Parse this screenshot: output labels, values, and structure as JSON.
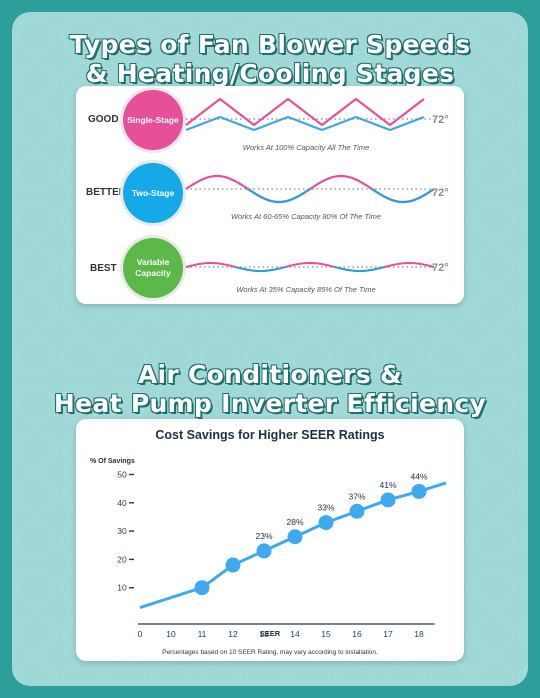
{
  "top_title": {
    "line1": "Types of Fan Blower Speeds",
    "line2": "& Heating/Cooling Stages"
  },
  "stages": [
    {
      "rating": "GOOD",
      "name": "Single-Stage",
      "temp": "72°",
      "caption": "Works At 100% Capacity All The Time",
      "color": "#e64f9a"
    },
    {
      "rating": "BETTER",
      "name": "Two-Stage",
      "temp": "72°",
      "caption": "Works At 60-65% Capacity 80% Of The Time",
      "color": "#16a9e8"
    },
    {
      "rating": "BEST",
      "name": "Variable Capacity",
      "temp": "72°",
      "caption": "Works At 35% Capacity 85% Of The Time",
      "color": "#5cb848"
    }
  ],
  "wave_colors": {
    "warm": "#e64f9a",
    "cool": "#2b9fd9"
  },
  "bottom_title": {
    "line1": "Air Conditioners &",
    "line2": "Heat Pump Inverter Efficiency"
  },
  "chart_data": {
    "type": "line",
    "title": "Cost Savings for Higher SEER Ratings",
    "ylabel": "% Of Savings",
    "xlabel": "SEER",
    "footnote": "Percentages based on 10 SEER Rating, may vary according to installation.",
    "x_ticks": [
      "0",
      "10",
      "11",
      "12",
      "13",
      "14",
      "15",
      "16",
      "17",
      "18"
    ],
    "y_ticks": [
      "10",
      "20",
      "30",
      "40",
      "50"
    ],
    "ylim": [
      0,
      53
    ],
    "line_start_y": 3,
    "line_end_y": 47,
    "points": [
      {
        "seer": "11",
        "value": 10,
        "label": ""
      },
      {
        "seer": "12",
        "value": 18,
        "label": ""
      },
      {
        "seer": "13",
        "value": 23,
        "label": "23%"
      },
      {
        "seer": "14",
        "value": 28,
        "label": "28%"
      },
      {
        "seer": "15",
        "value": 33,
        "label": "33%"
      },
      {
        "seer": "16",
        "value": 37,
        "label": "37%"
      },
      {
        "seer": "17",
        "value": 41,
        "label": "41%"
      },
      {
        "seer": "18",
        "value": 44,
        "label": "44%"
      }
    ],
    "line_color": "#3fa9ef",
    "axis_color": "#1f3a5a",
    "grid": false
  }
}
